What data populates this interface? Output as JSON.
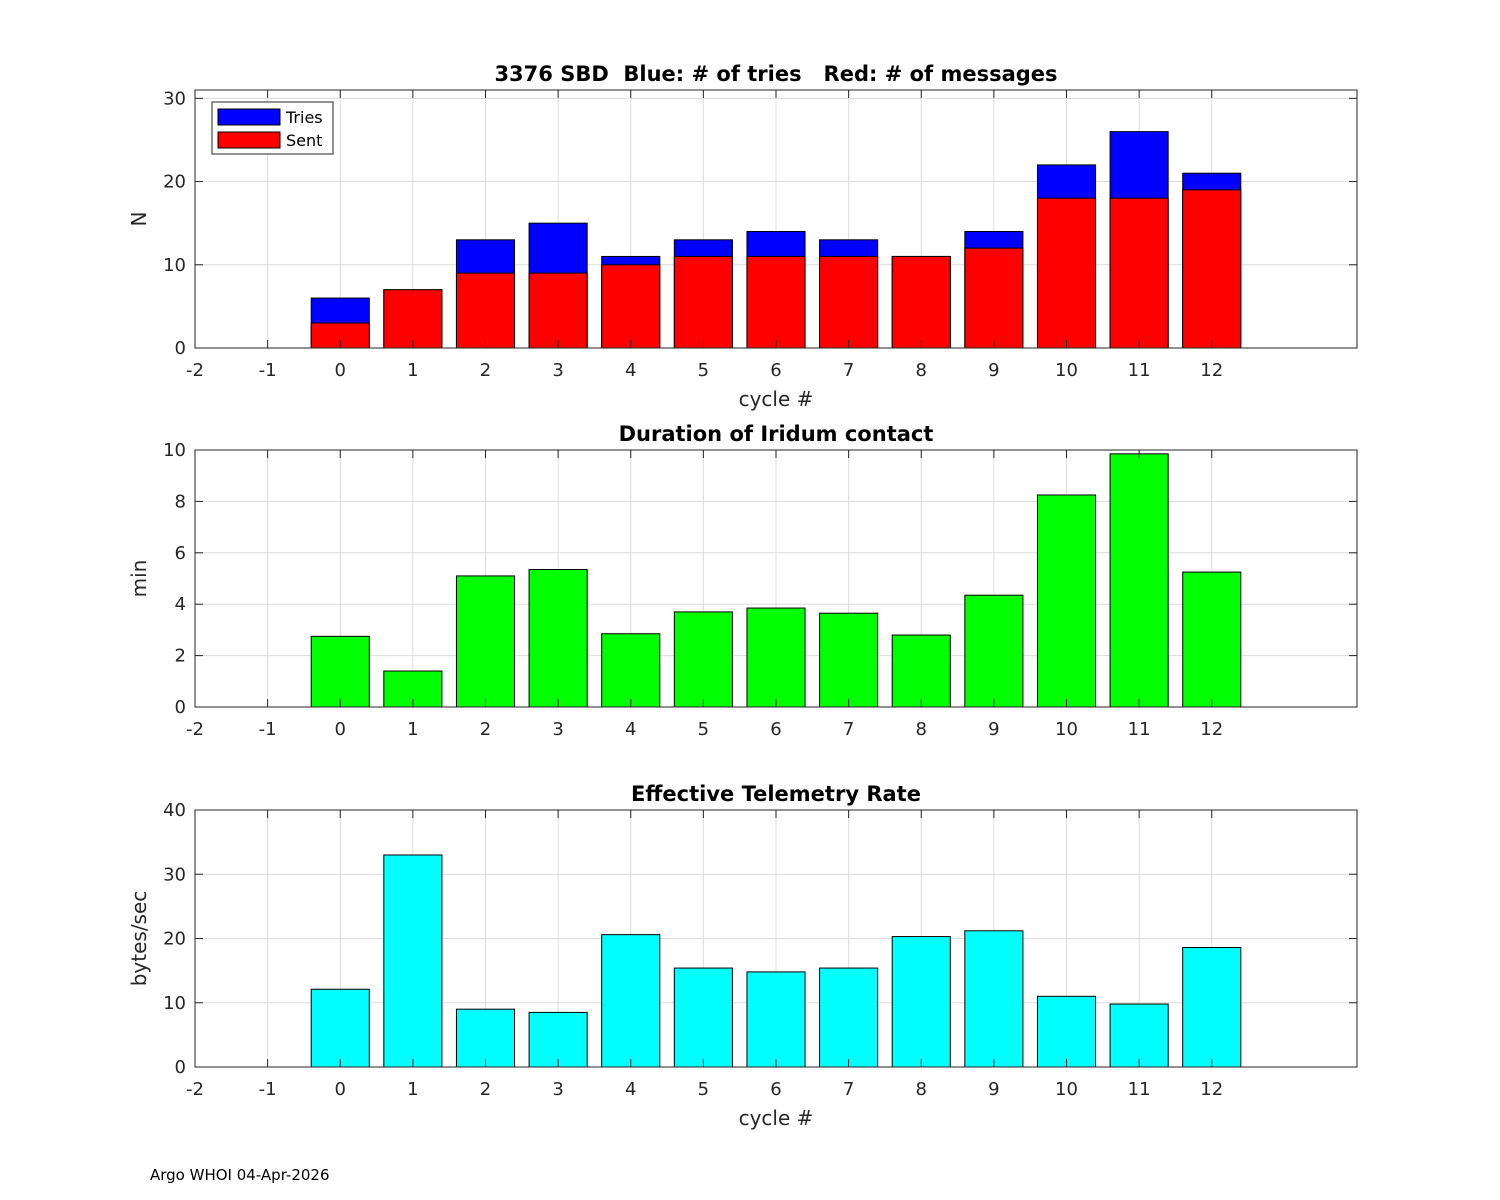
{
  "footer": "Argo WHOI 04-Apr-2026",
  "chart_data": [
    {
      "type": "bar",
      "title": "3376 SBD  Blue: # of tries   Red: # of messages",
      "xlabel": "cycle #",
      "ylabel": "N",
      "xlim": [
        -2,
        14
      ],
      "ylim": [
        0,
        31
      ],
      "xticks": [
        -2,
        -1,
        0,
        1,
        2,
        3,
        4,
        5,
        6,
        7,
        8,
        9,
        10,
        11,
        12
      ],
      "yticks": [
        0,
        10,
        20,
        30
      ],
      "grid": true,
      "legend": "top-left",
      "categories": [
        0,
        1,
        2,
        3,
        4,
        5,
        6,
        7,
        8,
        9,
        10,
        11,
        12
      ],
      "series": [
        {
          "name": "Tries",
          "color": "#0000ff",
          "values": [
            6,
            7,
            13,
            15,
            11,
            13,
            14,
            13,
            11,
            14,
            22,
            26,
            21
          ]
        },
        {
          "name": "Sent",
          "color": "#ff0000",
          "values": [
            3,
            7,
            9,
            9,
            10,
            11,
            11,
            11,
            11,
            12,
            18,
            18,
            19
          ]
        }
      ]
    },
    {
      "type": "bar",
      "title": "Duration of Iridum contact",
      "xlabel": "",
      "ylabel": "min",
      "xlim": [
        -2,
        14
      ],
      "ylim": [
        0,
        10
      ],
      "xticks": [
        -2,
        -1,
        0,
        1,
        2,
        3,
        4,
        5,
        6,
        7,
        8,
        9,
        10,
        11,
        12
      ],
      "yticks": [
        0,
        2,
        4,
        6,
        8,
        10
      ],
      "grid": true,
      "categories": [
        0,
        1,
        2,
        3,
        4,
        5,
        6,
        7,
        8,
        9,
        10,
        11,
        12
      ],
      "series": [
        {
          "name": "Duration",
          "color": "#00ff00",
          "values": [
            2.75,
            1.4,
            5.1,
            5.35,
            2.85,
            3.7,
            3.85,
            3.65,
            2.8,
            4.35,
            8.25,
            9.85,
            5.25
          ]
        }
      ]
    },
    {
      "type": "bar",
      "title": "Effective Telemetry Rate",
      "xlabel": "cycle #",
      "ylabel": "bytes/sec",
      "xlim": [
        -2,
        14
      ],
      "ylim": [
        0,
        40
      ],
      "xticks": [
        -2,
        -1,
        0,
        1,
        2,
        3,
        4,
        5,
        6,
        7,
        8,
        9,
        10,
        11,
        12
      ],
      "yticks": [
        0,
        10,
        20,
        30,
        40
      ],
      "grid": true,
      "categories": [
        0,
        1,
        2,
        3,
        4,
        5,
        6,
        7,
        8,
        9,
        10,
        11,
        12
      ],
      "series": [
        {
          "name": "Rate",
          "color": "#00ffff",
          "values": [
            12.1,
            33,
            9,
            8.5,
            20.6,
            15.4,
            14.8,
            15.4,
            20.3,
            21.2,
            11,
            9.8,
            18.6
          ]
        }
      ]
    }
  ]
}
